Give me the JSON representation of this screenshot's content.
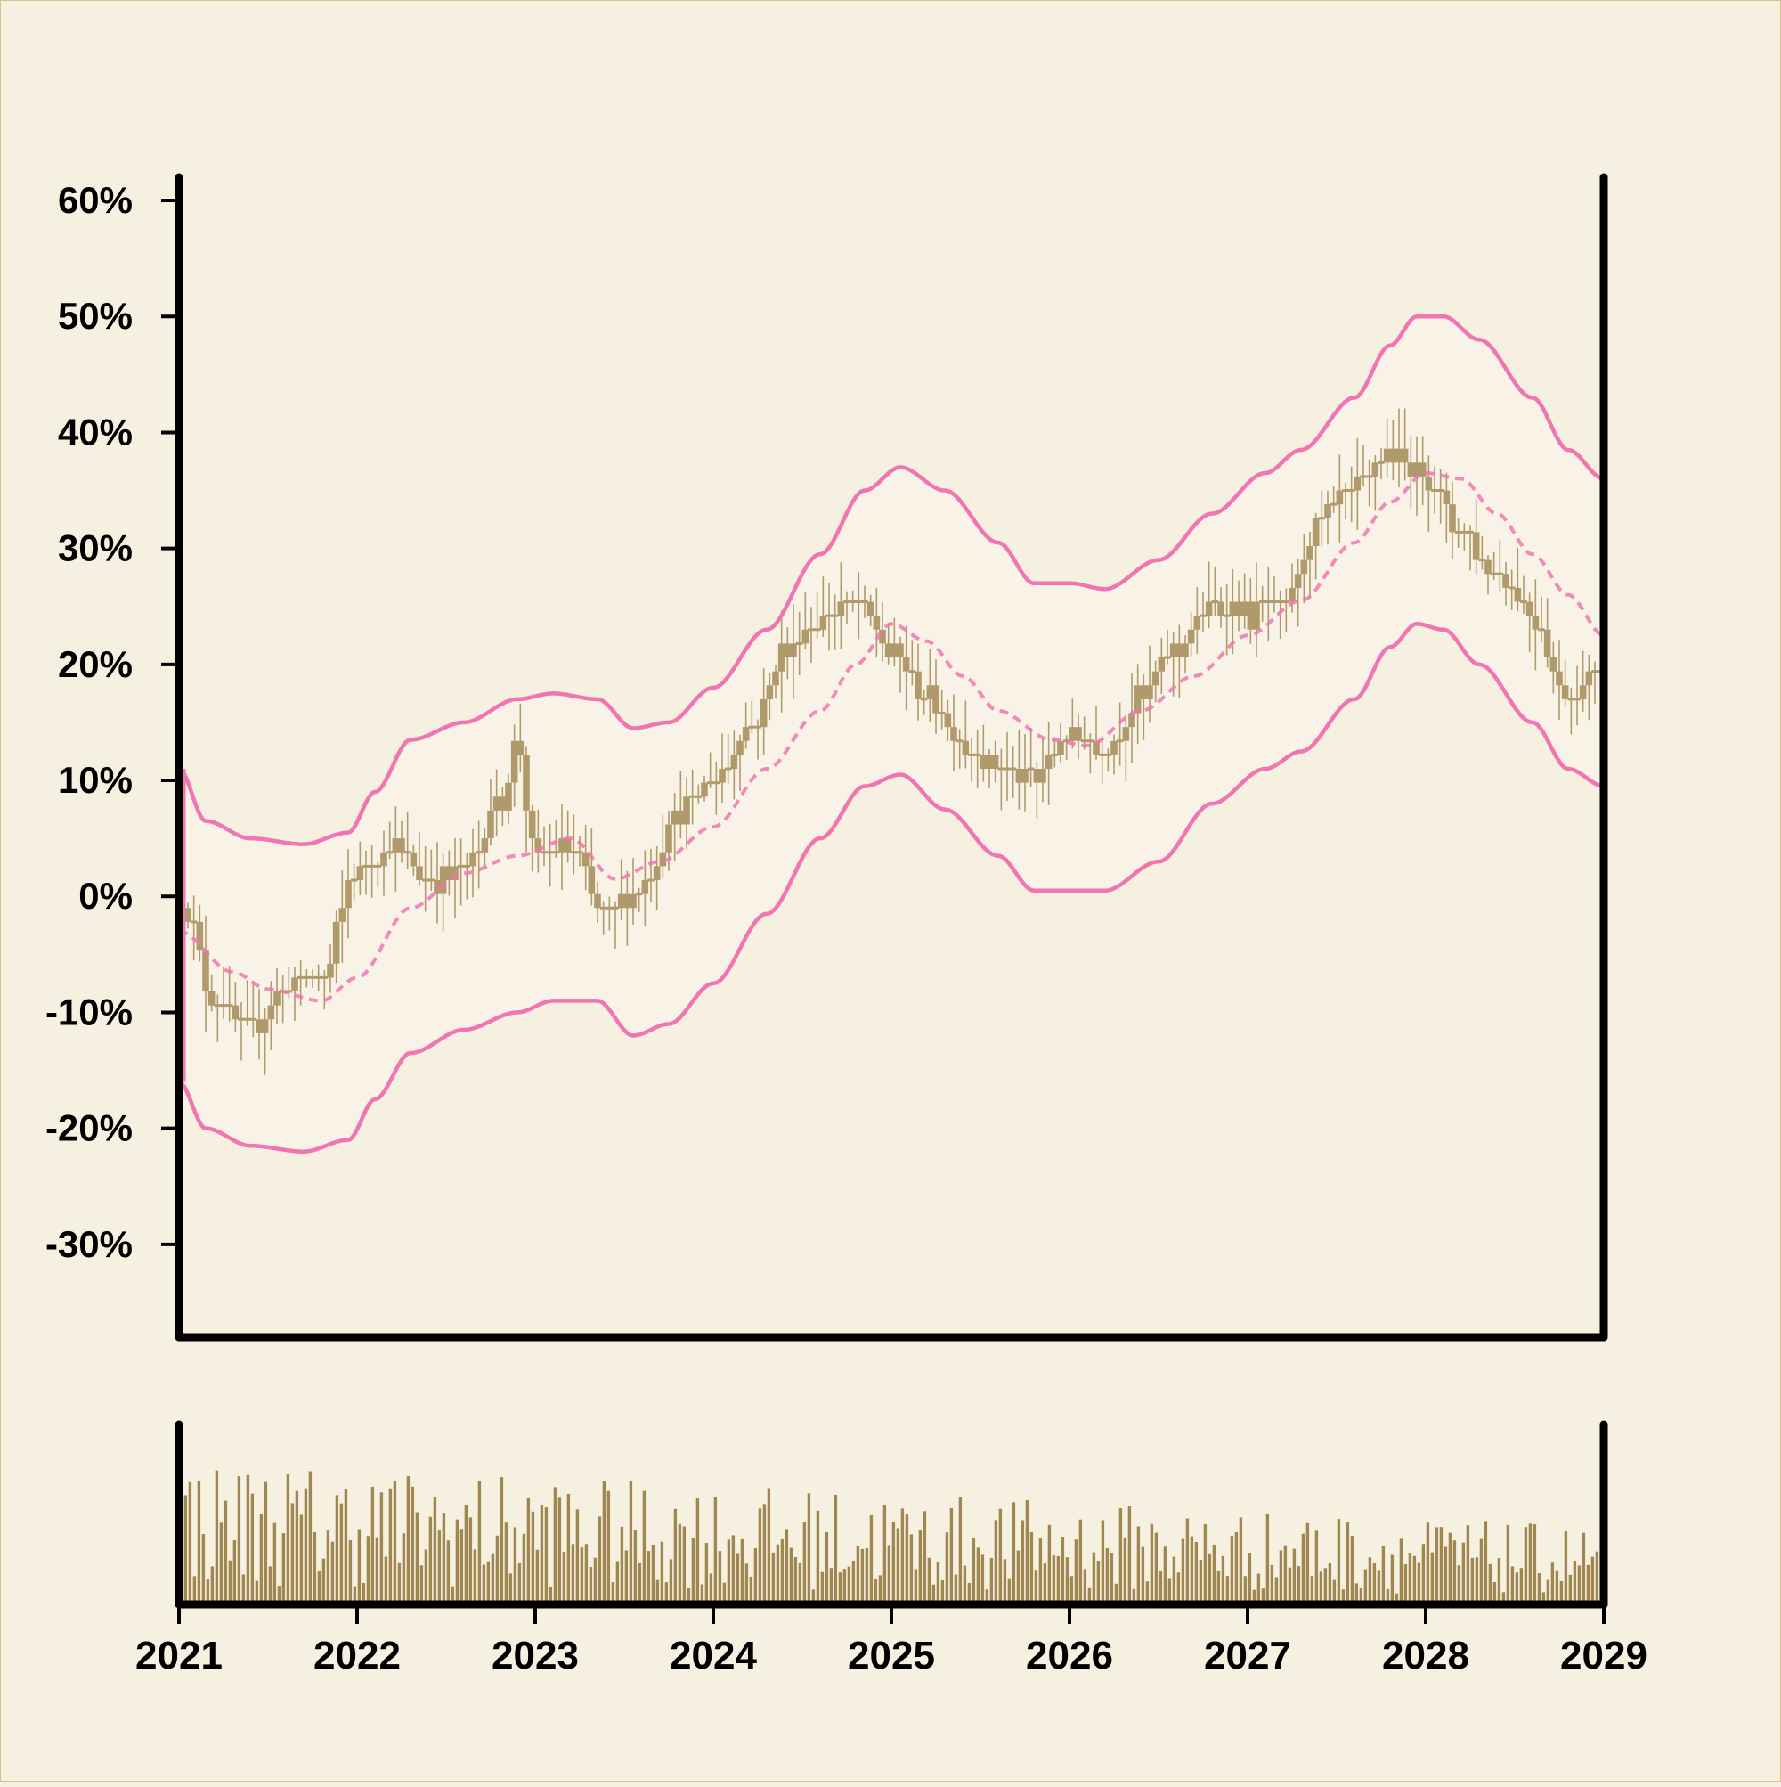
{
  "colors": {
    "background": "#f6f0e0",
    "band_fill": "#f8f3e6",
    "band_line": "#f075b0",
    "candle": "#b09a6c",
    "volume": "#a08650",
    "axis": "#000000"
  },
  "chart_data": {
    "type": "candlestick",
    "title": "",
    "xlabel": "",
    "ylabel": "",
    "x_range": [
      2021,
      2029
    ],
    "ylim": [
      -38,
      62
    ],
    "y_ticks": [
      -30,
      -20,
      -10,
      0,
      10,
      20,
      30,
      40,
      50,
      60
    ],
    "y_tick_labels": [
      "-30%",
      "-20%",
      "-10%",
      "0%",
      "10%",
      "20%",
      "30%",
      "40%",
      "50%",
      "60%"
    ],
    "x_ticks": [
      2021,
      2022,
      2023,
      2024,
      2025,
      2026,
      2027,
      2028,
      2029
    ],
    "x_tick_labels": [
      "2021",
      "2022",
      "2023",
      "2024",
      "2025",
      "2026",
      "2027",
      "2028",
      "2029"
    ],
    "price_anchors": {
      "x": [
        2021.0,
        2021.2,
        2021.4,
        2021.6,
        2021.8,
        2022.0,
        2022.2,
        2022.4,
        2022.6,
        2022.8,
        2022.9,
        2023.0,
        2023.2,
        2023.4,
        2023.6,
        2023.8,
        2024.0,
        2024.2,
        2024.4,
        2024.6,
        2024.8,
        2025.0,
        2025.2,
        2025.4,
        2025.6,
        2025.8,
        2026.0,
        2026.2,
        2026.4,
        2026.6,
        2026.8,
        2027.0,
        2027.2,
        2027.4,
        2027.6,
        2027.8,
        2028.0,
        2028.2,
        2028.4,
        2028.6,
        2028.8,
        2028.95
      ],
      "close_pct": [
        0,
        -9,
        -12,
        -8,
        -7,
        2,
        4,
        1,
        2,
        8,
        13,
        3,
        4,
        -2,
        1,
        7,
        10,
        14,
        21,
        24,
        25,
        21,
        17,
        13,
        11,
        10,
        14,
        12,
        17,
        21,
        25,
        24,
        25,
        32,
        35,
        38,
        36,
        31,
        28,
        24,
        17,
        19
      ]
    },
    "moving_average": {
      "style": "dashed",
      "x": [
        2021.0,
        2021.3,
        2021.5,
        2021.8,
        2022.0,
        2022.3,
        2022.6,
        2022.9,
        2023.2,
        2023.45,
        2023.7,
        2024.0,
        2024.3,
        2024.6,
        2024.8,
        2025.0,
        2025.2,
        2025.4,
        2025.6,
        2025.9,
        2026.1,
        2026.4,
        2026.7,
        2027.0,
        2027.3,
        2027.6,
        2027.8,
        2028.0,
        2028.2,
        2028.4,
        2028.6,
        2028.8,
        2029.0
      ],
      "y_pct": [
        -3,
        -6.5,
        -8,
        -9,
        -7,
        -1,
        2,
        3.5,
        5,
        1.5,
        3,
        6,
        11,
        16,
        20,
        23.5,
        22,
        19,
        16,
        13.5,
        13,
        16,
        19,
        22.5,
        25.5,
        30.5,
        34,
        36.5,
        36,
        33,
        29.5,
        26,
        22.5
      ]
    },
    "upper_band": {
      "x": [
        2021.0,
        2021.15,
        2021.4,
        2021.7,
        2021.95,
        2022.1,
        2022.3,
        2022.6,
        2022.9,
        2023.1,
        2023.35,
        2023.55,
        2023.75,
        2024.0,
        2024.3,
        2024.6,
        2024.85,
        2025.05,
        2025.3,
        2025.6,
        2025.8,
        2026.0,
        2026.2,
        2026.5,
        2026.8,
        2027.1,
        2027.3,
        2027.6,
        2027.8,
        2027.95,
        2028.1,
        2028.3,
        2028.6,
        2028.8,
        2029.0
      ],
      "y_pct": [
        11,
        6.5,
        5,
        4.5,
        5.5,
        9,
        13.5,
        15,
        17,
        17.5,
        17,
        14.5,
        15,
        18,
        23,
        29.5,
        35,
        37,
        35,
        30.5,
        27,
        27,
        26.5,
        29,
        33,
        36.5,
        38.5,
        43,
        47.5,
        50,
        50,
        48,
        43,
        38.5,
        36
      ]
    },
    "lower_band": {
      "x": [
        2021.0,
        2021.15,
        2021.4,
        2021.7,
        2021.95,
        2022.1,
        2022.3,
        2022.6,
        2022.9,
        2023.1,
        2023.35,
        2023.55,
        2023.75,
        2024.0,
        2024.3,
        2024.6,
        2024.85,
        2025.05,
        2025.3,
        2025.6,
        2025.8,
        2026.0,
        2026.2,
        2026.5,
        2026.8,
        2027.1,
        2027.3,
        2027.6,
        2027.8,
        2027.95,
        2028.1,
        2028.3,
        2028.6,
        2028.8,
        2029.0
      ],
      "y_pct": [
        -16,
        -20,
        -21.5,
        -22,
        -21,
        -17.5,
        -13.5,
        -11.5,
        -10,
        -9,
        -9,
        -12,
        -11,
        -7.5,
        -1.5,
        5,
        9.5,
        10.5,
        7.5,
        3.5,
        0.5,
        0.5,
        0.5,
        3,
        8,
        11,
        12.5,
        17,
        21.5,
        23.5,
        23,
        20,
        15,
        11,
        9.5
      ]
    },
    "volume": {
      "description": "weekly volume bars along the full time range, relative heights 0-1",
      "relative_range": [
        0.0,
        1.0
      ]
    }
  }
}
